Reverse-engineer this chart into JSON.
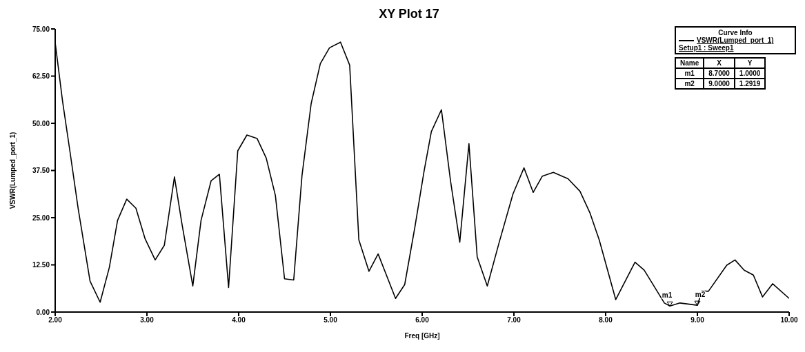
{
  "chart_data": {
    "type": "line",
    "title": "XY Plot 17",
    "xlabel": "Freq [GHz]",
    "ylabel": "VSWR(Lumped_port_1)",
    "legend_title": "Curve Info",
    "x": [
      2.0,
      2.08,
      2.16,
      2.25,
      2.38,
      2.49,
      2.59,
      2.68,
      2.78,
      2.88,
      2.98,
      3.09,
      3.19,
      3.3,
      3.38,
      3.5,
      3.59,
      3.7,
      3.79,
      3.89,
      3.99,
      4.09,
      4.2,
      4.3,
      4.4,
      4.5,
      4.6,
      4.69,
      4.79,
      4.89,
      4.99,
      5.11,
      5.21,
      5.31,
      5.42,
      5.52,
      5.61,
      5.71,
      5.81,
      5.92,
      6.02,
      6.1,
      6.21,
      6.31,
      6.41,
      6.51,
      6.6,
      6.71,
      6.84,
      6.99,
      7.11,
      7.21,
      7.31,
      7.43,
      7.59,
      7.72,
      7.83,
      7.93,
      8.11,
      8.32,
      8.42,
      8.64,
      8.7,
      8.81,
      9.0,
      9.05,
      9.12,
      9.32,
      9.41,
      9.51,
      9.61,
      9.71,
      9.82,
      10.0
    ],
    "series": [
      {
        "name": "VSWR(Lumped_port_1)",
        "color": "#000000",
        "values": [
          71.4,
          55.9,
          42.7,
          27.5,
          8.2,
          2.6,
          11.8,
          24.3,
          29.9,
          27.5,
          19.4,
          13.8,
          17.7,
          35.8,
          23.6,
          6.9,
          24.3,
          34.8,
          36.5,
          6.5,
          42.7,
          46.9,
          46.0,
          40.8,
          30.9,
          8.8,
          8.5,
          36.1,
          55.2,
          65.8,
          70.0,
          71.5,
          65.4,
          19.1,
          10.8,
          15.4,
          9.8,
          3.6,
          7.3,
          22.4,
          37.2,
          47.8,
          53.6,
          34.6,
          18.5,
          44.6,
          14.6,
          6.9,
          18.5,
          31.3,
          38.2,
          31.7,
          36.0,
          37.0,
          35.3,
          32.0,
          26.2,
          19.1,
          3.3,
          13.2,
          11.1,
          2.4,
          1.6,
          2.4,
          1.8,
          5.6,
          5.5,
          12.4,
          13.8,
          11.1,
          9.8,
          4.0,
          7.5,
          3.6
        ]
      }
    ],
    "xlim": [
      2,
      10
    ],
    "xticks": [
      {
        "value": 2,
        "label": "2.00"
      },
      {
        "value": 3,
        "label": "3.00"
      },
      {
        "value": 4,
        "label": "4.00"
      },
      {
        "value": 5,
        "label": "5.00"
      },
      {
        "value": 6,
        "label": "6.00"
      },
      {
        "value": 7,
        "label": "7.00"
      },
      {
        "value": 8,
        "label": "8.00"
      },
      {
        "value": 9,
        "label": "9.00"
      },
      {
        "value": 10,
        "label": "10.00"
      }
    ],
    "ylim": [
      0,
      75
    ],
    "yticks": [
      {
        "value": 0,
        "label": "0.00"
      },
      {
        "value": 12.5,
        "label": "12.50"
      },
      {
        "value": 25,
        "label": "25.00"
      },
      {
        "value": 37.5,
        "label": "37.50"
      },
      {
        "value": 50,
        "label": "50.00"
      },
      {
        "value": 62.5,
        "label": "62.50"
      },
      {
        "value": 75,
        "label": "75.00"
      }
    ],
    "legend": "top right",
    "marker": "none",
    "line_style": "solid",
    "annotations": [
      "Setup1 : Sweep1",
      "Name",
      "X",
      "Y",
      "m1",
      "8.7000",
      "1.0000",
      "m2",
      "9.0000",
      "1.2919",
      {
        "text": "m1",
        "x": 8.7,
        "y": 1.6
      },
      {
        "text": "m2",
        "x": 9.0,
        "y": 1.8
      }
    ]
  }
}
